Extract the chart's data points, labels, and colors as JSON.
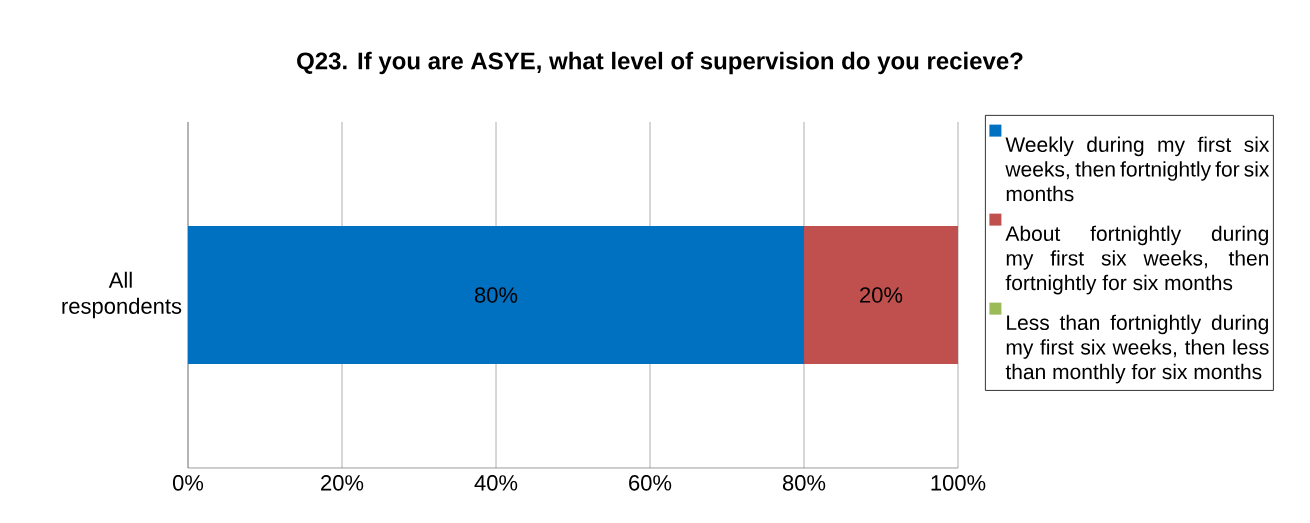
{
  "chart_data": {
    "type": "bar",
    "orientation": "horizontal",
    "stacked": true,
    "title": "Q23. If you are ASYE, what level of supervision do you recieve?",
    "categories": [
      "All respondents"
    ],
    "series": [
      {
        "name": "Weekly during my first six weeks, then fortnightly for six months",
        "color": "#0070c0",
        "values": [
          80
        ],
        "value_labels": [
          "80%"
        ]
      },
      {
        "name": "About fortnightly during my first six weeks, then fortnightly for six months",
        "color": "#c0504d",
        "values": [
          20
        ],
        "value_labels": [
          "20%"
        ]
      },
      {
        "name": "Less than fortnightly during my first six weeks, then less than monthly for six months",
        "color": "#9bbb59",
        "values": [
          0
        ],
        "value_labels": [
          null
        ]
      }
    ],
    "xlim": [
      0,
      100
    ],
    "xticks": [
      {
        "value": 0,
        "label": "0%"
      },
      {
        "value": 20,
        "label": "20%"
      },
      {
        "value": 40,
        "label": "40%"
      },
      {
        "value": 60,
        "label": "60%"
      },
      {
        "value": 80,
        "label": "80%"
      },
      {
        "value": 100,
        "label": "100%"
      }
    ],
    "grid": "x",
    "legend": "right"
  }
}
